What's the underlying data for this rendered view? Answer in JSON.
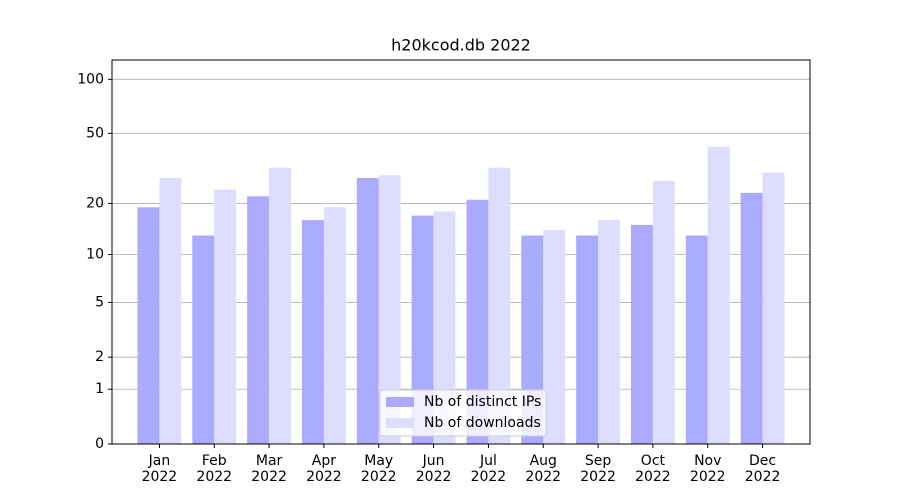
{
  "chart_data": {
    "type": "bar",
    "title": "h20kcod.db 2022",
    "categories": [
      "Jan\n2022",
      "Feb\n2022",
      "Mar\n2022",
      "Apr\n2022",
      "May\n2022",
      "Jun\n2022",
      "Jul\n2022",
      "Aug\n2022",
      "Sep\n2022",
      "Oct\n2022",
      "Nov\n2022",
      "Dec\n2022"
    ],
    "series": [
      {
        "name": "Nb of distinct IPs",
        "color": "#aaaaff",
        "values": [
          19,
          13,
          22,
          16,
          28,
          17,
          21,
          13,
          13,
          15,
          13,
          23
        ]
      },
      {
        "name": "Nb of downloads",
        "color": "#ddddff",
        "values": [
          28,
          24,
          32,
          19,
          29,
          18,
          32,
          14,
          16,
          27,
          42,
          30
        ]
      }
    ],
    "yscale": "log1p",
    "ylim": [
      0,
      128
    ],
    "yticks": [
      0,
      1,
      2,
      5,
      10,
      20,
      50,
      100
    ],
    "grid": true,
    "legend": "lower center"
  }
}
